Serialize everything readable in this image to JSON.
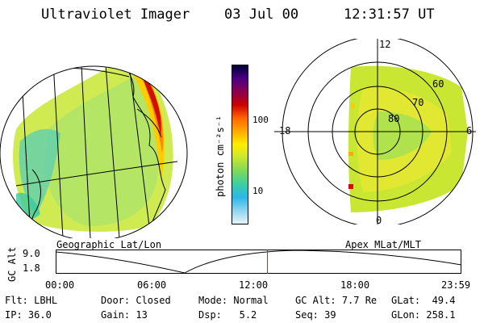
{
  "header": {
    "instrument": "Ultraviolet Imager",
    "date": "03 Jul 00",
    "time": "12:31:57 UT"
  },
  "left_panel": {
    "caption": "Geographic Lat/Lon"
  },
  "colorbar": {
    "label": "photon cm⁻²s⁻¹",
    "scale": "log",
    "ticks": [
      "100",
      "10"
    ],
    "colors": [
      "#000033",
      "#4b0082",
      "#8b0050",
      "#cc0000",
      "#ff6600",
      "#ffaa00",
      "#ffee00",
      "#c8e632",
      "#7ed957",
      "#3ccfa5",
      "#2ab7e8",
      "#8fd3f0",
      "#e6f4fa"
    ]
  },
  "right_panel": {
    "caption": "Apex MLat/MLT",
    "mlt_labels": [
      "12",
      "18",
      "6",
      "0"
    ],
    "lat_labels": [
      "60",
      "70",
      "80"
    ]
  },
  "altitude_strip": {
    "axis_label": "GC Alt",
    "y_ticks": [
      "9.0",
      "1.8"
    ],
    "x_ticks": [
      "00:00",
      "06:00",
      "12:00",
      "18:00",
      "23:59"
    ],
    "current_time_fraction": 0.522,
    "marker_color": "#ff0000"
  },
  "info": {
    "flt_label": "Flt:",
    "flt_value": "LBHL",
    "ip_label": "IP:",
    "ip_value": "36.0",
    "door_label": "Door:",
    "door_value": "Closed",
    "gain_label": "Gain:",
    "gain_value": "13",
    "mode_label": "Mode:",
    "mode_value": "Normal",
    "dsp_label": "Dsp:",
    "dsp_value": "5.2",
    "gcalt_label": "GC Alt:",
    "gcalt_value": "7.7 Re",
    "seq_label": "Seq:",
    "seq_value": "39",
    "glat_label": "GLat:",
    "glat_value": "49.4",
    "glon_label": "GLon:",
    "glon_value": "258.1"
  }
}
